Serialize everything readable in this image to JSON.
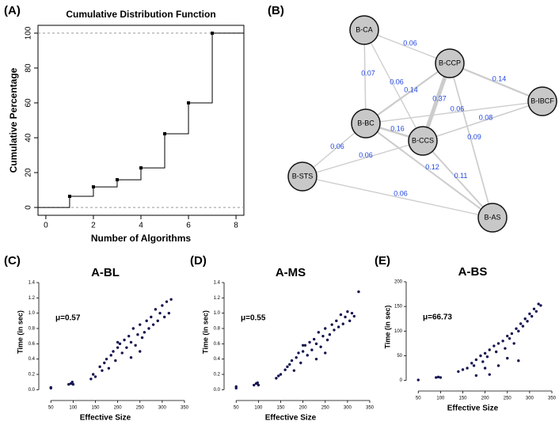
{
  "chart_data": [
    {
      "type": "step",
      "panel_label": "(A)",
      "title": "Cumulative Distribution Function",
      "xlabel": "Number of Algorithms",
      "ylabel": "Cumulative Percentage",
      "x": [
        1,
        2,
        3,
        4,
        5,
        6,
        7
      ],
      "values": [
        6.4,
        11.8,
        15.9,
        22.7,
        42.3,
        60,
        100
      ],
      "xlim": [
        -0.33,
        8.33
      ],
      "ylim": [
        -4.5,
        104.5
      ],
      "xticks": [
        0,
        2,
        4,
        6,
        8
      ],
      "yticks": [
        0,
        20,
        40,
        60,
        80,
        100
      ],
      "hlines": [
        0,
        100
      ],
      "color": "#000000"
    },
    {
      "type": "network",
      "panel_label": "(B)",
      "nodes": [
        "B-CA",
        "B-CCP",
        "B-IBCF",
        "B-BC",
        "B-CCS",
        "B-STS",
        "B-AS"
      ],
      "edges": [
        {
          "source": "B-CA",
          "target": "B-CCP",
          "weight": 0.06
        },
        {
          "source": "B-CA",
          "target": "B-BC",
          "weight": 0.07
        },
        {
          "source": "B-CA",
          "target": "B-CCS",
          "weight": 0.06
        },
        {
          "source": "B-CCP",
          "target": "B-BC",
          "weight": 0.14
        },
        {
          "source": "B-CCP",
          "target": "B-IBCF",
          "weight": 0.14
        },
        {
          "source": "B-CCP",
          "target": "B-CCS",
          "weight": 0.37
        },
        {
          "source": "B-BC",
          "target": "B-IBCF",
          "weight": 0.06
        },
        {
          "source": "B-CCS",
          "target": "B-IBCF",
          "weight": 0.08
        },
        {
          "source": "B-CCP",
          "target": "B-AS",
          "weight": 0.09
        },
        {
          "source": "B-BC",
          "target": "B-CCS",
          "weight": 0.16
        },
        {
          "source": "B-BC",
          "target": "B-STS",
          "weight": 0.06
        },
        {
          "source": "B-STS",
          "target": "B-CCS",
          "weight": 0.06
        },
        {
          "source": "B-BC",
          "target": "B-AS",
          "weight": 0.12
        },
        {
          "source": "B-CCS",
          "target": "B-AS",
          "weight": 0.11
        },
        {
          "source": "B-STS",
          "target": "B-AS",
          "weight": 0.06
        }
      ],
      "node_color": "#c8c8c8",
      "edge_color": "#cccccc",
      "label_color": "#2246e0"
    },
    {
      "type": "scatter",
      "panel_label": "(C)",
      "title": "A-BL",
      "annotation": "μ=0.57",
      "xlabel": "Effective Size",
      "ylabel": "Time (in sec)",
      "color": "#141450",
      "x": [
        50,
        50,
        90,
        95,
        98,
        100,
        140,
        145,
        150,
        160,
        165,
        170,
        175,
        180,
        185,
        190,
        195,
        200,
        205,
        210,
        215,
        220,
        225,
        230,
        235,
        240,
        245,
        250,
        255,
        260,
        265,
        270,
        275,
        280,
        285,
        290,
        295,
        300,
        305,
        310,
        315,
        320,
        230,
        250,
        200
      ],
      "values": [
        0.02,
        0.03,
        0.07,
        0.08,
        0.1,
        0.07,
        0.14,
        0.2,
        0.17,
        0.3,
        0.25,
        0.35,
        0.4,
        0.28,
        0.45,
        0.5,
        0.38,
        0.55,
        0.6,
        0.48,
        0.65,
        0.55,
        0.7,
        0.62,
        0.8,
        0.58,
        0.72,
        0.85,
        0.68,
        0.75,
        0.9,
        0.8,
        0.95,
        0.85,
        1.05,
        0.9,
        1.0,
        1.1,
        0.95,
        1.15,
        1.0,
        1.18,
        0.42,
        0.5,
        0.62
      ],
      "xlim": [
        30,
        350
      ],
      "ylim": [
        -0.1,
        1.4
      ],
      "xticks": [
        50,
        100,
        150,
        200,
        250,
        300,
        350
      ],
      "yticks": [
        {
          "value": 0,
          "label": "0.0"
        },
        0.2,
        0.4,
        0.6,
        0.8,
        {
          "value": 1,
          "label": "1.0"
        },
        1.2,
        1.4
      ]
    },
    {
      "type": "scatter",
      "panel_label": "(D)",
      "title": "A-MS",
      "annotation": "μ=0.55",
      "xlabel": "Effective Size",
      "ylabel": "Time (in sec)",
      "color": "#141450",
      "x": [
        50,
        50,
        90,
        95,
        98,
        100,
        140,
        145,
        150,
        160,
        165,
        170,
        175,
        180,
        185,
        190,
        195,
        200,
        205,
        210,
        215,
        220,
        225,
        230,
        235,
        240,
        245,
        250,
        255,
        260,
        265,
        270,
        275,
        280,
        285,
        290,
        295,
        300,
        305,
        310,
        315,
        325,
        230,
        250,
        200
      ],
      "values": [
        0.02,
        0.04,
        0.06,
        0.08,
        0.09,
        0.06,
        0.15,
        0.18,
        0.2,
        0.26,
        0.3,
        0.33,
        0.38,
        0.25,
        0.42,
        0.48,
        0.35,
        0.5,
        0.58,
        0.45,
        0.62,
        0.52,
        0.66,
        0.6,
        0.75,
        0.56,
        0.7,
        0.8,
        0.65,
        0.72,
        0.85,
        0.78,
        0.9,
        0.82,
        0.98,
        0.86,
        0.95,
        1.02,
        0.9,
        1.0,
        0.96,
        1.28,
        0.4,
        0.48,
        0.58
      ],
      "xlim": [
        30,
        350
      ],
      "ylim": [
        -0.1,
        1.4
      ],
      "xticks": [
        50,
        100,
        150,
        200,
        250,
        300,
        350
      ],
      "yticks": [
        {
          "value": 0,
          "label": "0.0"
        },
        0.2,
        0.4,
        0.6,
        0.8,
        {
          "value": 1,
          "label": "1.0"
        },
        1.2,
        1.4
      ]
    },
    {
      "type": "scatter",
      "panel_label": "(E)",
      "title": "A-BS",
      "annotation": "μ=66.73",
      "xlabel": "Effective Size",
      "ylabel": "Time (in sec)",
      "color": "#141450",
      "x": [
        50,
        90,
        95,
        100,
        140,
        150,
        160,
        170,
        175,
        180,
        190,
        195,
        200,
        205,
        210,
        220,
        225,
        230,
        240,
        245,
        250,
        255,
        260,
        265,
        270,
        275,
        280,
        285,
        290,
        295,
        300,
        305,
        310,
        315,
        320,
        325,
        230,
        250,
        275,
        200,
        180,
        210
      ],
      "values": [
        1,
        6,
        7,
        6,
        18,
        22,
        25,
        35,
        30,
        42,
        50,
        38,
        55,
        48,
        62,
        70,
        58,
        75,
        80,
        65,
        90,
        85,
        95,
        75,
        105,
        100,
        115,
        110,
        125,
        120,
        135,
        130,
        145,
        140,
        155,
        152,
        30,
        45,
        40,
        25,
        10,
        12
      ],
      "xlim": [
        30,
        350
      ],
      "ylim": [
        -15,
        200
      ],
      "xticks": [
        50,
        100,
        150,
        200,
        250,
        300,
        350
      ],
      "yticks": [
        0,
        50,
        100,
        150,
        200
      ]
    }
  ]
}
